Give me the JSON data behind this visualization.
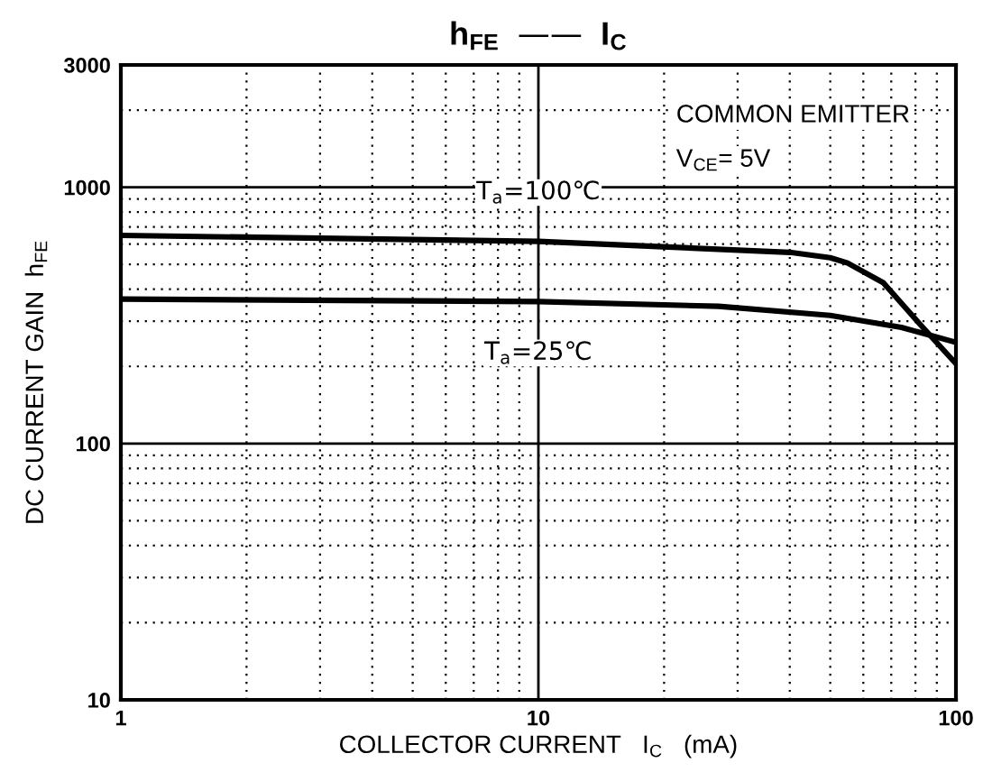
{
  "chart_data": {
    "type": "line",
    "title": "h$_{FE}$  ——  I$_{C}$",
    "xlabel": "COLLECTOR CURRENT   I$_{C}$   (mA)",
    "ylabel": "DC CURRENT GAIN  h$_{FE}$",
    "annotations": [
      "COMMON EMITTER",
      "V$_{CE}$= 5V"
    ],
    "series": [
      {
        "name": "T$_{a}$=100℃",
        "color": "#000000",
        "x": [
          1,
          10,
          40,
          50,
          55,
          67,
          82,
          100
        ],
        "values": [
          649,
          615,
          557,
          531,
          506,
          424,
          292,
          205
        ]
      },
      {
        "name": "T$_{a}$=25℃",
        "color": "#000000",
        "x": [
          1,
          10,
          27,
          50,
          74,
          100
        ],
        "values": [
          366,
          358,
          343,
          316,
          284,
          248
        ]
      }
    ],
    "log": "xy",
    "xlim": [
      1,
      100
    ],
    "ylim": [
      10,
      3000
    ],
    "xticks": [
      1,
      10,
      100
    ],
    "yticks": [
      10,
      100,
      1000,
      3000
    ],
    "grid": true,
    "legend": false,
    "marker": "none",
    "line_style": "solid"
  }
}
